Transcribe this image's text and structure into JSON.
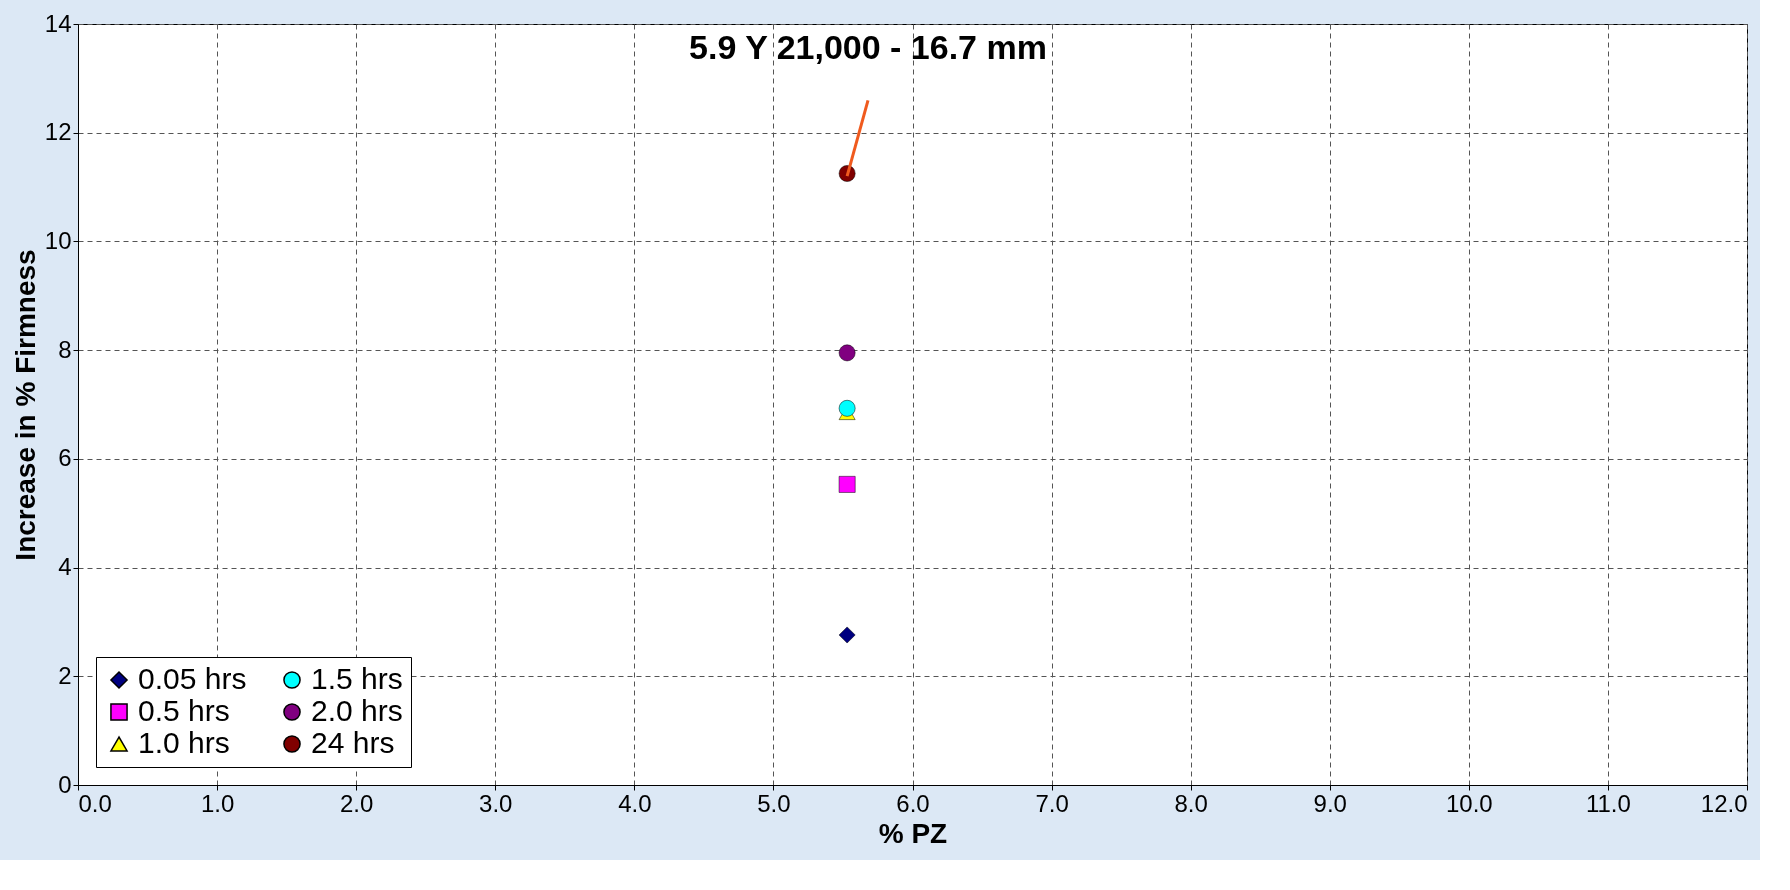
{
  "chart_data": {
    "type": "scatter",
    "xlabel": "% PZ",
    "ylabel": "Increase in % Firmness",
    "annotations": [
      {
        "text": "5.9 Y 21,000 - 16.7 mm",
        "x": 5.53,
        "y": 11.2
      }
    ],
    "x": [
      5.53
    ],
    "series": [
      {
        "name": "0.05 hrs",
        "color": "#000080",
        "marker": "diamond",
        "values": [
          2.76
        ]
      },
      {
        "name": "0.5 hrs",
        "color": "#ff00ff",
        "marker": "square",
        "values": [
          5.53
        ]
      },
      {
        "name": "1.0 hrs",
        "color": "#ffff00",
        "marker": "triangle",
        "values": [
          6.85
        ]
      },
      {
        "name": "1.5 hrs",
        "color": "#00ffff",
        "marker": "circle",
        "values": [
          6.93
        ]
      },
      {
        "name": "2.0 hrs",
        "color": "#800080",
        "marker": "circle",
        "values": [
          7.95
        ]
      },
      {
        "name": "24 hrs",
        "color": "#800000",
        "marker": "circle",
        "values": [
          11.25
        ]
      }
    ],
    "xlim": [
      0,
      12
    ],
    "xticks": [
      {
        "value": 0,
        "label": "0.0"
      },
      {
        "value": 1,
        "label": "1.0"
      },
      {
        "value": 2,
        "label": "2.0"
      },
      {
        "value": 3,
        "label": "3.0"
      },
      {
        "value": 4,
        "label": "4.0"
      },
      {
        "value": 5,
        "label": "5.0"
      },
      {
        "value": 6,
        "label": "6.0"
      },
      {
        "value": 7,
        "label": "7.0"
      },
      {
        "value": 8,
        "label": "8.0"
      },
      {
        "value": 9,
        "label": "9.0"
      },
      {
        "value": 10,
        "label": "10.0"
      },
      {
        "value": 11,
        "label": "11.0"
      },
      {
        "value": 12,
        "label": "12.0"
      }
    ],
    "ylim": [
      0,
      14
    ],
    "yticks": [
      0,
      2,
      4,
      6,
      8,
      10,
      12,
      14
    ],
    "grid": true,
    "legend": "bottom left"
  }
}
